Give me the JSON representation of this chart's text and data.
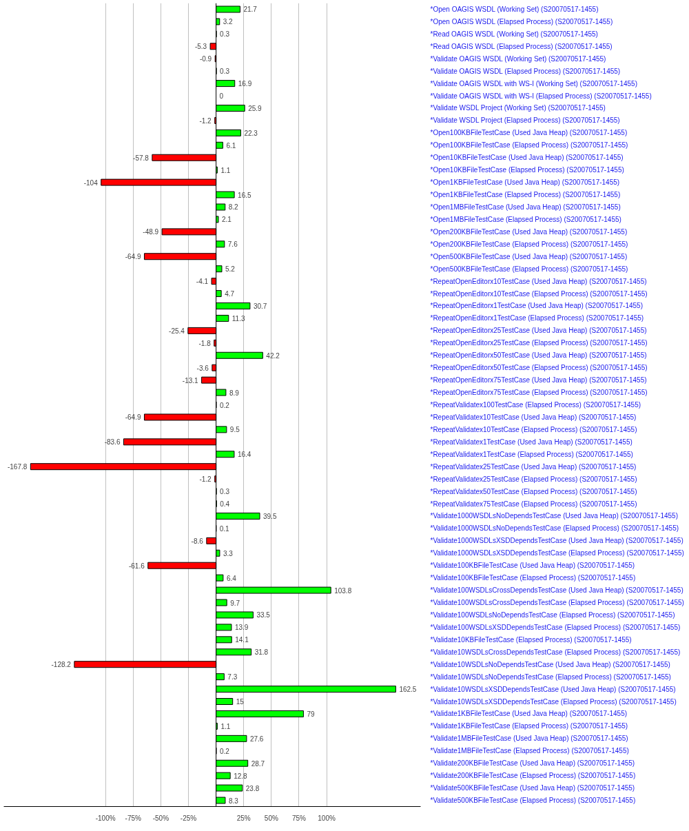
{
  "chart_data": {
    "type": "bar",
    "orientation": "horizontal",
    "categories": [
      "*Open OAGIS WSDL (Working Set) (S20070517-1455)",
      "*Open OAGIS WSDL (Elapsed Process) (S20070517-1455)",
      "*Read OAGIS WSDL (Working Set) (S20070517-1455)",
      "*Read OAGIS WSDL (Elapsed Process) (S20070517-1455)",
      "*Validate OAGIS WSDL (Working Set) (S20070517-1455)",
      "*Validate OAGIS WSDL (Elapsed Process) (S20070517-1455)",
      "*Validate OAGIS WSDL with WS-I (Working Set) (S20070517-1455)",
      "*Validate OAGIS WSDL with WS-I (Elapsed Process) (S20070517-1455)",
      "*Validate WSDL Project (Working Set) (S20070517-1455)",
      "*Validate WSDL Project (Elapsed Process) (S20070517-1455)",
      "*Open100KBFileTestCase (Used Java Heap) (S20070517-1455)",
      "*Open100KBFileTestCase (Elapsed Process) (S20070517-1455)",
      "*Open10KBFileTestCase (Used Java Heap) (S20070517-1455)",
      "*Open10KBFileTestCase (Elapsed Process) (S20070517-1455)",
      "*Open1KBFileTestCase (Used Java Heap) (S20070517-1455)",
      "*Open1KBFileTestCase (Elapsed Process) (S20070517-1455)",
      "*Open1MBFileTestCase (Used Java Heap) (S20070517-1455)",
      "*Open1MBFileTestCase (Elapsed Process) (S20070517-1455)",
      "*Open200KBFileTestCase (Used Java Heap) (S20070517-1455)",
      "*Open200KBFileTestCase (Elapsed Process) (S20070517-1455)",
      "*Open500KBFileTestCase (Used Java Heap) (S20070517-1455)",
      "*Open500KBFileTestCase (Elapsed Process) (S20070517-1455)",
      "*RepeatOpenEditorx10TestCase (Used Java Heap) (S20070517-1455)",
      "*RepeatOpenEditorx10TestCase (Elapsed Process) (S20070517-1455)",
      "*RepeatOpenEditorx1TestCase (Used Java Heap) (S20070517-1455)",
      "*RepeatOpenEditorx1TestCase (Elapsed Process) (S20070517-1455)",
      "*RepeatOpenEditorx25TestCase (Used Java Heap) (S20070517-1455)",
      "*RepeatOpenEditorx25TestCase (Elapsed Process) (S20070517-1455)",
      "*RepeatOpenEditorx50TestCase (Used Java Heap) (S20070517-1455)",
      "*RepeatOpenEditorx50TestCase (Elapsed Process) (S20070517-1455)",
      "*RepeatOpenEditorx75TestCase (Used Java Heap) (S20070517-1455)",
      "*RepeatOpenEditorx75TestCase (Elapsed Process) (S20070517-1455)",
      "*RepeatValidatex100TestCase (Elapsed Process) (S20070517-1455)",
      "*RepeatValidatex10TestCase (Used Java Heap) (S20070517-1455)",
      "*RepeatValidatex10TestCase (Elapsed Process) (S20070517-1455)",
      "*RepeatValidatex1TestCase (Used Java Heap) (S20070517-1455)",
      "*RepeatValidatex1TestCase (Elapsed Process) (S20070517-1455)",
      "*RepeatValidatex25TestCase (Used Java Heap) (S20070517-1455)",
      "*RepeatValidatex25TestCase (Elapsed Process) (S20070517-1455)",
      "*RepeatValidatex50TestCase (Elapsed Process) (S20070517-1455)",
      "*RepeatValidatex75TestCase (Elapsed Process) (S20070517-1455)",
      "*Validate1000WSDLsNoDependsTestCase (Used Java Heap) (S20070517-1455)",
      "*Validate1000WSDLsNoDependsTestCase (Elapsed Process) (S20070517-1455)",
      "*Validate1000WSDLsXSDDependsTestCase (Used Java Heap) (S20070517-1455)",
      "*Validate1000WSDLsXSDDependsTestCase (Elapsed Process) (S20070517-1455)",
      "*Validate100KBFileTestCase (Used Java Heap) (S20070517-1455)",
      "*Validate100KBFileTestCase (Elapsed Process) (S20070517-1455)",
      "*Validate100WSDLsCrossDependsTestCase (Used Java Heap) (S20070517-1455)",
      "*Validate100WSDLsCrossDependsTestCase (Elapsed Process) (S20070517-1455)",
      "*Validate100WSDLsNoDependsTestCase (Elapsed Process) (S20070517-1455)",
      "*Validate100WSDLsXSDDependsTestCase (Elapsed Process) (S20070517-1455)",
      "*Validate10KBFileTestCase (Elapsed Process) (S20070517-1455)",
      "*Validate10WSDLsCrossDependsTestCase (Elapsed Process) (S20070517-1455)",
      "*Validate10WSDLsNoDependsTestCase (Used Java Heap) (S20070517-1455)",
      "*Validate10WSDLsNoDependsTestCase (Elapsed Process) (S20070517-1455)",
      "*Validate10WSDLsXSDDependsTestCase (Used Java Heap) (S20070517-1455)",
      "*Validate10WSDLsXSDDependsTestCase (Elapsed Process) (S20070517-1455)",
      "*Validate1KBFileTestCase (Used Java Heap) (S20070517-1455)",
      "*Validate1KBFileTestCase (Elapsed Process) (S20070517-1455)",
      "*Validate1MBFileTestCase (Used Java Heap) (S20070517-1455)",
      "*Validate1MBFileTestCase (Elapsed Process) (S20070517-1455)",
      "*Validate200KBFileTestCase (Used Java Heap) (S20070517-1455)",
      "*Validate200KBFileTestCase (Elapsed Process) (S20070517-1455)",
      "*Validate500KBFileTestCase (Used Java Heap) (S20070517-1455)",
      "*Validate500KBFileTestCase (Elapsed Process) (S20070517-1455)"
    ],
    "values": [
      21.7,
      3.2,
      0.3,
      -5.3,
      -0.9,
      0.3,
      16.9,
      0,
      25.9,
      -1.2,
      22.3,
      6.1,
      -57.8,
      1.1,
      -104,
      16.5,
      8.2,
      2.1,
      -48.9,
      7.6,
      -64.9,
      5.2,
      -4.1,
      4.7,
      30.7,
      11.3,
      -25.4,
      -1.8,
      42.2,
      -3.6,
      -13.1,
      8.9,
      0.2,
      -64.9,
      9.5,
      -83.6,
      16.4,
      -167.8,
      -1.2,
      0.3,
      0.4,
      39.5,
      0.1,
      -8.6,
      3.3,
      -61.6,
      6.4,
      103.8,
      9.7,
      33.5,
      13.9,
      14.1,
      31.8,
      -128.2,
      7.3,
      162.5,
      15,
      79,
      1.1,
      27.6,
      0.2,
      28.7,
      12.8,
      23.8,
      8.3
    ],
    "colors": [
      "#00ff00",
      "#00ff00",
      "#00ff00",
      "#ff0000",
      "#ff0000",
      "#00ff00",
      "#00ff00",
      null,
      "#00ff00",
      "#ff0000",
      "#00ff00",
      "#00ff00",
      "#ff0000",
      "#00ff00",
      "#ff0000",
      "#00ff00",
      "#00ff00",
      "#00ff00",
      "#ff0000",
      "#00ff00",
      "#ff0000",
      "#00ff00",
      "#ff0000",
      "#00ff00",
      "#00ff00",
      "#00ff00",
      "#ff0000",
      "#ff0000",
      "#00ff00",
      "#ff0000",
      "#ff0000",
      "#00ff00",
      "#00ff00",
      "#ff0000",
      "#00ff00",
      "#ff0000",
      "#00ff00",
      "#ff0000",
      "#ff0000",
      "#00ff00",
      "#00ff00",
      "#00ff00",
      "#00ff00",
      "#ff0000",
      "#00ff00",
      "#ff0000",
      "#00ff00",
      "#00ff00",
      "#00ff00",
      "#00ff00",
      "#00ff00",
      "#00ff00",
      "#00ff00",
      "#ff0000",
      "#00ff00",
      "#00ff00",
      "#00ff00",
      "#00ff00",
      "#00ff00",
      "#00ff00",
      "#00ff00",
      "#00ff00",
      "#00ff00",
      "#00ff00",
      "#00ff00"
    ],
    "data_labels": true,
    "xlim": [
      -192,
      185
    ],
    "xticks": [
      {
        "value": -100,
        "label": "-100%"
      },
      {
        "value": -75,
        "label": "-75%"
      },
      {
        "value": -50,
        "label": "-50%"
      },
      {
        "value": -25,
        "label": "-25%"
      },
      {
        "value": 25,
        "label": "25%"
      },
      {
        "value": 50,
        "label": "50%"
      },
      {
        "value": 75,
        "label": "75%"
      },
      {
        "value": 100,
        "label": "100%"
      }
    ],
    "grid": "x",
    "ref_lines": [
      {
        "axis": "x",
        "value": 0,
        "color": "#000000"
      }
    ]
  }
}
